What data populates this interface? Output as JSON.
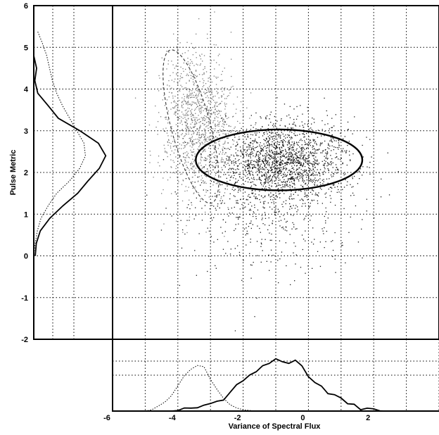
{
  "chart_data": {
    "type": "scatter",
    "title": "",
    "xlabel": "Variance of Spectral Flux",
    "ylabel": "Pulse Metric",
    "xlim": [
      -6,
      4
    ],
    "ylim": [
      -2,
      6
    ],
    "xticks": [
      "-6",
      "-4",
      "-2",
      "0",
      "2"
    ],
    "yticks": [
      "-2",
      "-1",
      "0",
      "1",
      "2",
      "3",
      "4",
      "5",
      "6"
    ],
    "grid": true,
    "clusters": [
      {
        "style": "light",
        "center": [
          -3.4,
          3.2
        ],
        "spread": [
          0.55,
          0.85
        ],
        "count": 1100
      },
      {
        "style": "dark",
        "center": [
          -0.8,
          2.3
        ],
        "spread": [
          1.0,
          0.45
        ],
        "count": 1700
      },
      {
        "style": "dark-sparse",
        "center": [
          -1.3,
          1.2
        ],
        "spread": [
          1.3,
          0.8
        ],
        "count": 500
      }
    ],
    "ellipses": [
      {
        "series": "dark",
        "center": [
          -0.9,
          2.3
        ],
        "radii": [
          2.55,
          0.73
        ],
        "rotation_deg": 0,
        "style": "solid"
      },
      {
        "series": "light",
        "center": [
          -3.6,
          3.1
        ],
        "radii": [
          0.6,
          1.9
        ],
        "rotation_deg": -15,
        "style": "dashed"
      }
    ],
    "marginal_x": {
      "x": [
        -5,
        -4.8,
        -4.6,
        -4.4,
        -4.2,
        -4,
        -3.8,
        -3.6,
        -3.4,
        -3.2,
        -3,
        -2.8,
        -2.6,
        -2.4,
        -2.2,
        -2,
        -1.8,
        -1.6,
        -1.4,
        -1.2,
        -1,
        -0.8,
        -0.6,
        -0.4,
        -0.2,
        0,
        0.2,
        0.4,
        0.6,
        0.8,
        1,
        1.2,
        1.4,
        1.6,
        1.8,
        2,
        2.2,
        2.4
      ],
      "series": [
        {
          "style": "solid",
          "values": [
            0,
            0,
            0,
            0,
            0,
            0.01,
            0.02,
            0.04,
            0.06,
            0.08,
            0.1,
            0.14,
            0.2,
            0.28,
            0.4,
            0.5,
            0.58,
            0.62,
            0.7,
            0.78,
            0.82,
            0.8,
            0.78,
            0.82,
            0.72,
            0.56,
            0.46,
            0.4,
            0.3,
            0.24,
            0.2,
            0.14,
            0.08,
            0.04,
            0.02,
            0.01,
            0.01,
            0
          ]
        },
        {
          "style": "dotted",
          "values": [
            0,
            0.02,
            0.08,
            0.14,
            0.24,
            0.4,
            0.56,
            0.66,
            0.72,
            0.7,
            0.5,
            0.34,
            0.2,
            0.1,
            0.05,
            0.02,
            0.01,
            0,
            0,
            0,
            0,
            0,
            0,
            0,
            0,
            0,
            0,
            0,
            0,
            0,
            0,
            0,
            0,
            0,
            0,
            0,
            0,
            0
          ]
        }
      ]
    },
    "marginal_y": {
      "y": [
        0,
        0.3,
        0.6,
        0.9,
        1.2,
        1.5,
        1.8,
        2.1,
        2.4,
        2.7,
        3,
        3.3,
        3.6,
        3.9,
        4.2,
        4.5,
        4.8,
        5.1,
        5.4
      ],
      "series": [
        {
          "style": "solid",
          "values": [
            0.01,
            0.04,
            0.1,
            0.2,
            0.42,
            0.6,
            0.78,
            0.9,
            1.0,
            0.9,
            0.62,
            0.35,
            0.18,
            0.08,
            0.03,
            0.01,
            0,
            0,
            0
          ]
        },
        {
          "style": "dotted",
          "values": [
            0,
            0.02,
            0.05,
            0.1,
            0.2,
            0.32,
            0.5,
            0.64,
            0.72,
            0.7,
            0.6,
            0.5,
            0.4,
            0.32,
            0.26,
            0.22,
            0.18,
            0.12,
            0.05
          ]
        }
      ]
    }
  }
}
